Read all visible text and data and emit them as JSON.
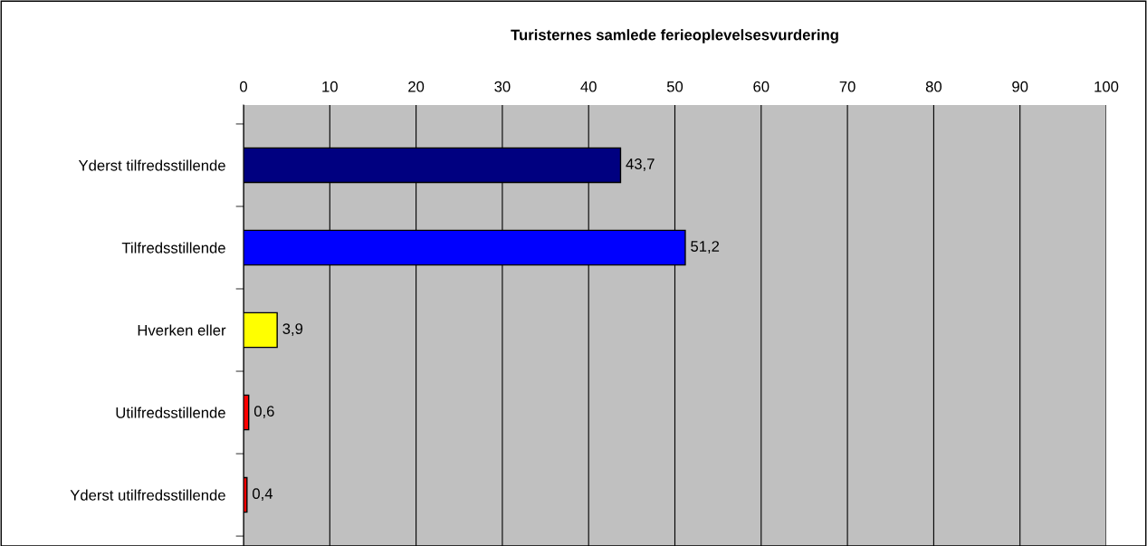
{
  "chart_data": {
    "type": "bar",
    "orientation": "horizontal",
    "title": "Turisternes samlede ferieoplevelsesvurdering",
    "categories": [
      "Yderst tilfredsstillende",
      "Tilfredsstillende",
      "Hverken eller",
      "Utilfredsstillende",
      "Yderst utilfredsstillende"
    ],
    "values": [
      43.7,
      51.2,
      3.9,
      0.6,
      0.4
    ],
    "colors": [
      "#000080",
      "#0000ff",
      "#ffff00",
      "#ff0000",
      "#ff0000"
    ],
    "value_labels": [
      "43,7",
      "51,2",
      "3,9",
      "0,6",
      "0,4"
    ],
    "xlim": [
      0,
      100
    ],
    "xticks": [
      0,
      10,
      20,
      30,
      40,
      50,
      60,
      70,
      80,
      90,
      100
    ],
    "grid": "x",
    "legend": false
  }
}
